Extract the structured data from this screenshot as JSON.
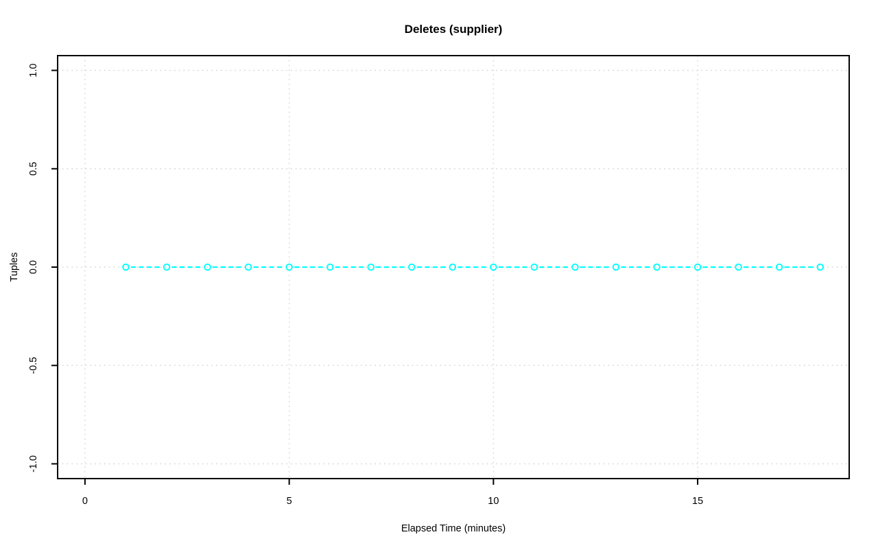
{
  "page": {
    "background": "#ffffff"
  },
  "chart_data": {
    "type": "line",
    "subtype": "points-and-dashed-line",
    "title": "Deletes (supplier)",
    "xlabel": "Elapsed Time (minutes)",
    "ylabel": "Tuples",
    "x": [
      1,
      2,
      3,
      4,
      5,
      6,
      7,
      8,
      9,
      10,
      11,
      12,
      13,
      14,
      15,
      16,
      17,
      18
    ],
    "y": [
      0,
      0,
      0,
      0,
      0,
      0,
      0,
      0,
      0,
      0,
      0,
      0,
      0,
      0,
      0,
      0,
      0,
      0
    ],
    "series": [
      {
        "name": "deletes",
        "values": [
          0,
          0,
          0,
          0,
          0,
          0,
          0,
          0,
          0,
          0,
          0,
          0,
          0,
          0,
          0,
          0,
          0,
          0
        ]
      }
    ],
    "xticks": [
      0,
      5,
      10,
      15
    ],
    "xtick_labels": [
      "0",
      "5",
      "10",
      "15"
    ],
    "yticks": [
      1.0,
      0.5,
      0.0,
      -0.5,
      -1.0
    ],
    "ytick_labels": [
      "1.0",
      "0.5",
      "0.0",
      "-0.5",
      "-1.0"
    ],
    "xlim": [
      -0.67,
      18.71
    ],
    "ylim": [
      -1.075,
      1.075
    ],
    "grid": true,
    "grid_style": "dotted",
    "legend": "none",
    "colors": {
      "series": "#00ffff",
      "grid": "#d3d3d3",
      "axis": "#000000",
      "title": "#000000",
      "background": "#ffffff"
    },
    "point_style": "open-circle",
    "line_style": "dashed"
  }
}
